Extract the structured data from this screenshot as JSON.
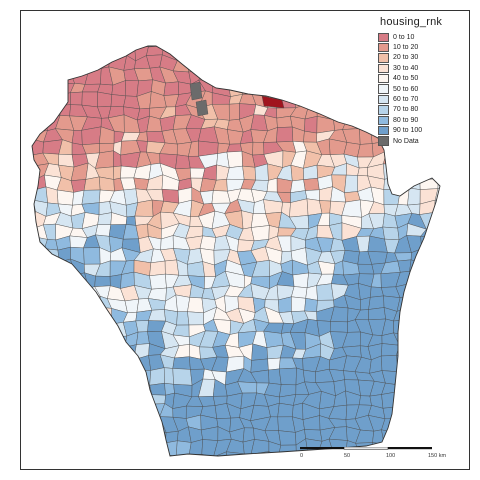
{
  "legend": {
    "title": "housing_rnk",
    "items": [
      {
        "label": "0 to 10",
        "color": "#d77c86"
      },
      {
        "label": "10 to 20",
        "color": "#e39a8d"
      },
      {
        "label": "20 to 30",
        "color": "#f1c0a9"
      },
      {
        "label": "30 to 40",
        "color": "#fbe2d5"
      },
      {
        "label": "40 to 50",
        "color": "#fdf6f1"
      },
      {
        "label": "50 to 60",
        "color": "#f0f5f9"
      },
      {
        "label": "60 to 70",
        "color": "#d6e6f2"
      },
      {
        "label": "70 to 80",
        "color": "#b7d4ea"
      },
      {
        "label": "80 to 90",
        "color": "#8fbadf"
      },
      {
        "label": "90 to 100",
        "color": "#6f9fcb"
      },
      {
        "label": "No Data",
        "color": "#6b6b6b"
      }
    ]
  },
  "scale_bar": {
    "labels": [
      "0",
      "50",
      "100",
      "150 km"
    ]
  },
  "colors": {
    "border": "#4a4a4a",
    "highlight": "#a0141e"
  }
}
